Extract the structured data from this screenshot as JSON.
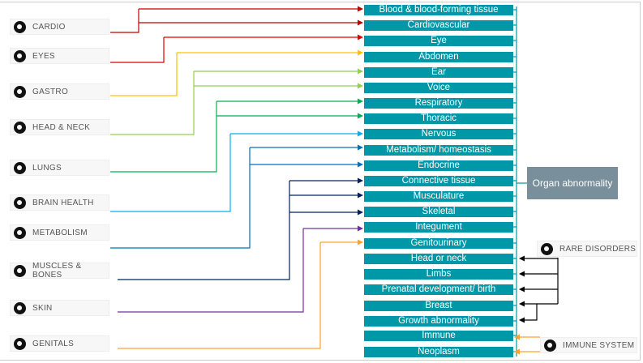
{
  "sources": [
    {
      "label": "CARDIO",
      "icon": "heart-icon"
    },
    {
      "label": "EYES",
      "icon": "eye-icon"
    },
    {
      "label": "GASTRO",
      "icon": "stomach-icon"
    },
    {
      "label": "HEAD & NECK",
      "icon": "head-icon"
    },
    {
      "label": "LUNGS",
      "icon": "lungs-icon"
    },
    {
      "label": "BRAIN HEALTH",
      "icon": "brain-icon"
    },
    {
      "label": "METABOLISM",
      "icon": "metabolism-icon"
    },
    {
      "label": "MUSCLES & BONES",
      "icon": "bone-icon"
    },
    {
      "label": "SKIN",
      "icon": "hand-icon"
    },
    {
      "label": "GENITALS",
      "icon": "genitals-icon"
    }
  ],
  "targets": [
    "Blood & blood-forming tissue",
    "Cardiovascular",
    "Eye",
    "Abdomen",
    "Ear",
    "Voice",
    "Respiratory",
    "Thoracic",
    "Nervous",
    "Metabolism/ homeostasis",
    "Endocrine",
    "Connective tissue",
    "Musculature",
    "Skeletal",
    "Integument",
    "Genitourinary",
    "Head or neck",
    "Limbs",
    "Prenatal development/ birth",
    "Breast",
    "Growth abnormality",
    "Immune",
    "Neoplasm"
  ],
  "side_sources": [
    {
      "label": "RARE DISORDERS",
      "icon": "dna-icon"
    },
    {
      "label": "IMMUNE SYSTEM",
      "icon": "immune-icon"
    }
  ],
  "root": "Organ abnormality",
  "colors": {
    "target": "#0097a7",
    "root": "#798f9b",
    "cardio": "#c00000",
    "eyes": "#e00000",
    "gastro": "#ffc000",
    "head_neck": "#92d050",
    "lungs": "#00b050",
    "brain": "#00b0f0",
    "metabolism": "#0070c0",
    "muscles": "#002060",
    "skin": "#7030a0",
    "genitals": "#ffa030",
    "rare": "#000000",
    "immune": "#ffa030"
  },
  "links": [
    {
      "from": "CARDIO",
      "to": [
        "Blood & blood-forming tissue",
        "Cardiovascular"
      ]
    },
    {
      "from": "EYES",
      "to": [
        "Eye"
      ]
    },
    {
      "from": "GASTRO",
      "to": [
        "Abdomen"
      ]
    },
    {
      "from": "HEAD & NECK",
      "to": [
        "Ear",
        "Voice"
      ]
    },
    {
      "from": "LUNGS",
      "to": [
        "Respiratory",
        "Thoracic"
      ]
    },
    {
      "from": "BRAIN HEALTH",
      "to": [
        "Nervous"
      ]
    },
    {
      "from": "METABOLISM",
      "to": [
        "Metabolism/ homeostasis",
        "Endocrine"
      ]
    },
    {
      "from": "MUSCLES & BONES",
      "to": [
        "Connective tissue",
        "Musculature",
        "Skeletal"
      ]
    },
    {
      "from": "SKIN",
      "to": [
        "Integument"
      ]
    },
    {
      "from": "GENITALS",
      "to": [
        "Genitourinary"
      ]
    },
    {
      "from": "RARE DISORDERS",
      "to": [
        "Head or neck",
        "Limbs",
        "Prenatal development/ birth",
        "Breast",
        "Growth abnormality"
      ]
    },
    {
      "from": "IMMUNE SYSTEM",
      "to": [
        "Immune",
        "Neoplasm"
      ]
    }
  ]
}
